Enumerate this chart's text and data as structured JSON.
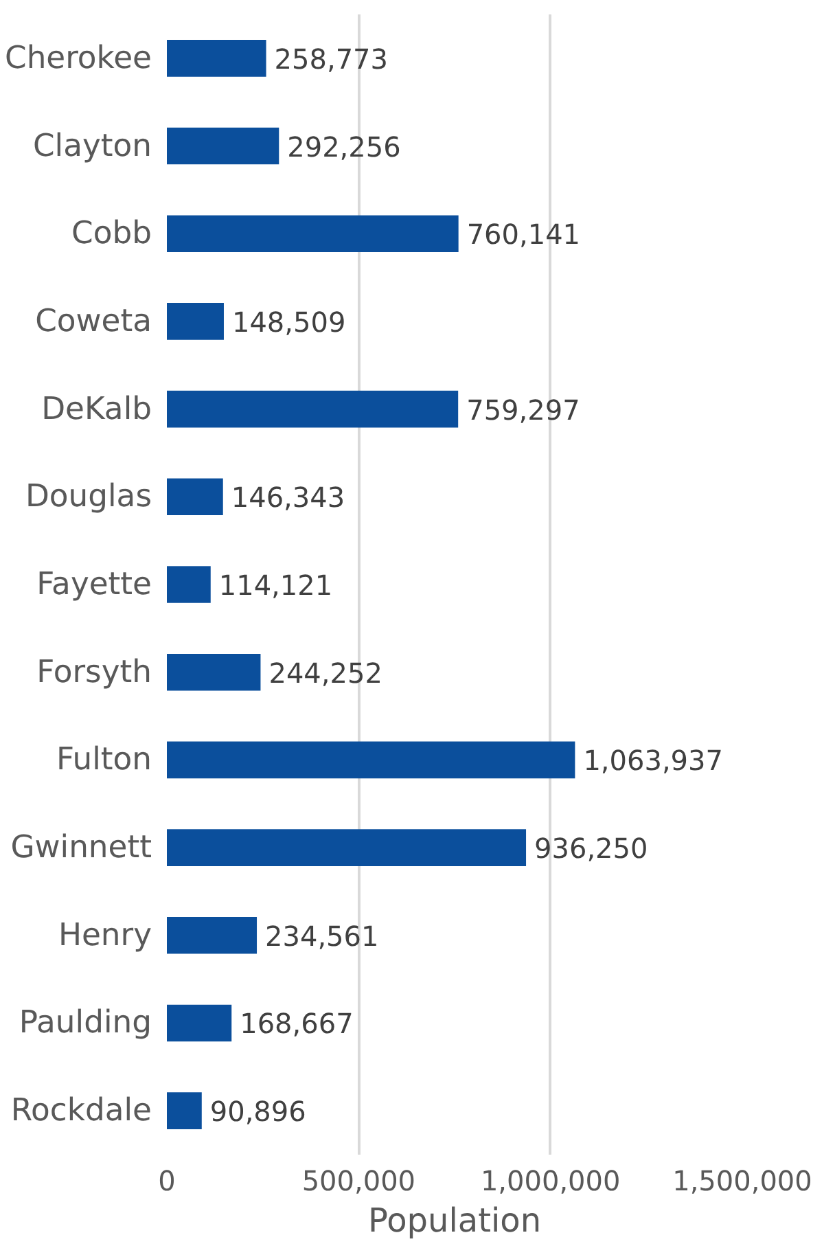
{
  "chart_data": {
    "type": "bar",
    "orientation": "horizontal",
    "xlabel": "Population",
    "categories": [
      "Cherokee",
      "Clayton",
      "Cobb",
      "Coweta",
      "DeKalb",
      "Douglas",
      "Fayette",
      "Forsyth",
      "Fulton",
      "Gwinnett",
      "Henry",
      "Paulding",
      "Rockdale"
    ],
    "values": [
      258773,
      292256,
      760141,
      148509,
      759297,
      146343,
      114121,
      244252,
      1063937,
      936250,
      234561,
      168667,
      90896
    ],
    "color": "#0b4f9c",
    "xlim": [
      0,
      1500000
    ],
    "xticks": [
      {
        "value": 0,
        "label": "0"
      },
      {
        "value": 500000,
        "label": "500,000"
      },
      {
        "value": 1000000,
        "label": "1,000,000"
      },
      {
        "value": 1500000,
        "label": "1,500,000"
      }
    ],
    "value_labels": [
      "258,773",
      "292,256",
      "760,141",
      "148,509",
      "759,297",
      "146,343",
      "114,121",
      "244,252",
      "1,063,937",
      "936,250",
      "234,561",
      "168,667",
      "90,896"
    ],
    "grid": "x"
  }
}
